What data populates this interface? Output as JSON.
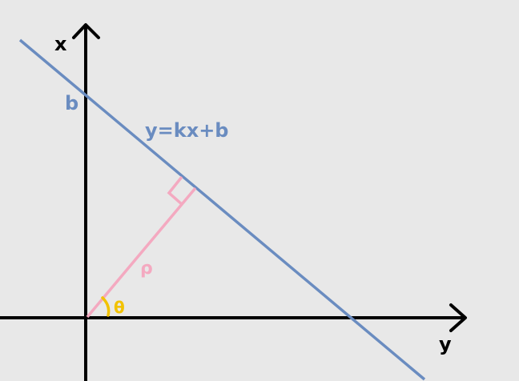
{
  "labels": {
    "x_axis": "x",
    "y_axis": "y",
    "intercept": "b",
    "line_equation": "y=kx+b",
    "perpendicular": "ρ",
    "angle": "θ"
  },
  "colors": {
    "background": "#e8e8e8",
    "axes": "#000000",
    "line": "#6a8cc0",
    "perpendicular": "#f4a9c0",
    "angle": "#f2c200"
  }
}
